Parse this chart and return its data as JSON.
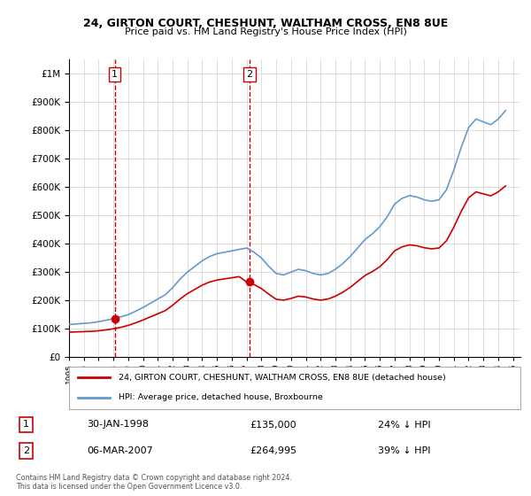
{
  "title1": "24, GIRTON COURT, CHESHUNT, WALTHAM CROSS, EN8 8UE",
  "title2": "Price paid vs. HM Land Registry's House Price Index (HPI)",
  "sale1_date": "30-JAN-1998",
  "sale1_price": 135000,
  "sale1_label": "24% ↓ HPI",
  "sale2_date": "06-MAR-2007",
  "sale2_price": 264995,
  "sale2_label": "39% ↓ HPI",
  "sale1_year": 1998.08,
  "sale2_year": 2007.18,
  "legend_line1": "24, GIRTON COURT, CHESHUNT, WALTHAM CROSS, EN8 8UE (detached house)",
  "legend_line2": "HPI: Average price, detached house, Broxbourne",
  "footer": "Contains HM Land Registry data © Crown copyright and database right 2024.\nThis data is licensed under the Open Government Licence v3.0.",
  "red_color": "#cc0000",
  "blue_color": "#6699cc",
  "ylim": [
    0,
    1050000
  ],
  "xlim_start": 1995.0,
  "xlim_end": 2025.5,
  "hpi_years": [
    1995,
    1995.5,
    1996,
    1996.5,
    1997,
    1997.5,
    1998,
    1998.5,
    1999,
    1999.5,
    2000,
    2000.5,
    2001,
    2001.5,
    2002,
    2002.5,
    2003,
    2003.5,
    2004,
    2004.5,
    2005,
    2005.5,
    2006,
    2006.5,
    2007,
    2007.5,
    2008,
    2008.5,
    2009,
    2009.5,
    2010,
    2010.5,
    2011,
    2011.5,
    2012,
    2012.5,
    2013,
    2013.5,
    2014,
    2014.5,
    2015,
    2015.5,
    2016,
    2016.5,
    2017,
    2017.5,
    2018,
    2018.5,
    2019,
    2019.5,
    2020,
    2020.5,
    2021,
    2021.5,
    2022,
    2022.5,
    2023,
    2023.5,
    2024,
    2024.5
  ],
  "hpi_values": [
    115000,
    117000,
    119000,
    121000,
    125000,
    130000,
    136000,
    142000,
    150000,
    162000,
    175000,
    190000,
    205000,
    220000,
    245000,
    275000,
    300000,
    320000,
    340000,
    355000,
    365000,
    370000,
    375000,
    380000,
    385000,
    370000,
    350000,
    320000,
    295000,
    290000,
    300000,
    310000,
    305000,
    295000,
    290000,
    295000,
    310000,
    330000,
    355000,
    385000,
    415000,
    435000,
    460000,
    495000,
    540000,
    560000,
    570000,
    565000,
    555000,
    550000,
    555000,
    590000,
    660000,
    740000,
    810000,
    840000,
    830000,
    820000,
    840000,
    870000
  ],
  "red_years": [
    1995,
    1995.5,
    1996,
    1996.5,
    1997,
    1997.5,
    1998,
    1998.5,
    1999,
    1999.5,
    2000,
    2000.5,
    2001,
    2001.5,
    2002,
    2002.5,
    2003,
    2003.5,
    2004,
    2004.5,
    2005,
    2005.5,
    2006,
    2006.5,
    2007,
    2007.5,
    2008,
    2008.5,
    2009,
    2009.5,
    2010,
    2010.5,
    2011,
    2011.5,
    2012,
    2012.5,
    2013,
    2013.5,
    2014,
    2014.5,
    2015,
    2015.5,
    2016,
    2016.5,
    2017,
    2017.5,
    2018,
    2018.5,
    2019,
    2019.5,
    2020,
    2020.5,
    2021,
    2021.5,
    2022,
    2022.5,
    2023,
    2023.5,
    2024,
    2024.5
  ],
  "red_values": [
    88000,
    89000,
    90000,
    91000,
    93000,
    96000,
    100000,
    105000,
    112000,
    121000,
    131000,
    142000,
    153000,
    164000,
    183000,
    205000,
    224000,
    239000,
    254000,
    265000,
    272000,
    276000,
    280000,
    284000,
    265000,
    256000,
    242000,
    222000,
    204000,
    201000,
    207000,
    215000,
    212000,
    205000,
    201000,
    205000,
    215000,
    229000,
    246000,
    267000,
    288000,
    302000,
    319000,
    344000,
    375000,
    389000,
    396000,
    393000,
    386000,
    382000,
    385000,
    410000,
    458000,
    514000,
    562000,
    583000,
    576000,
    569000,
    583000,
    604000
  ]
}
